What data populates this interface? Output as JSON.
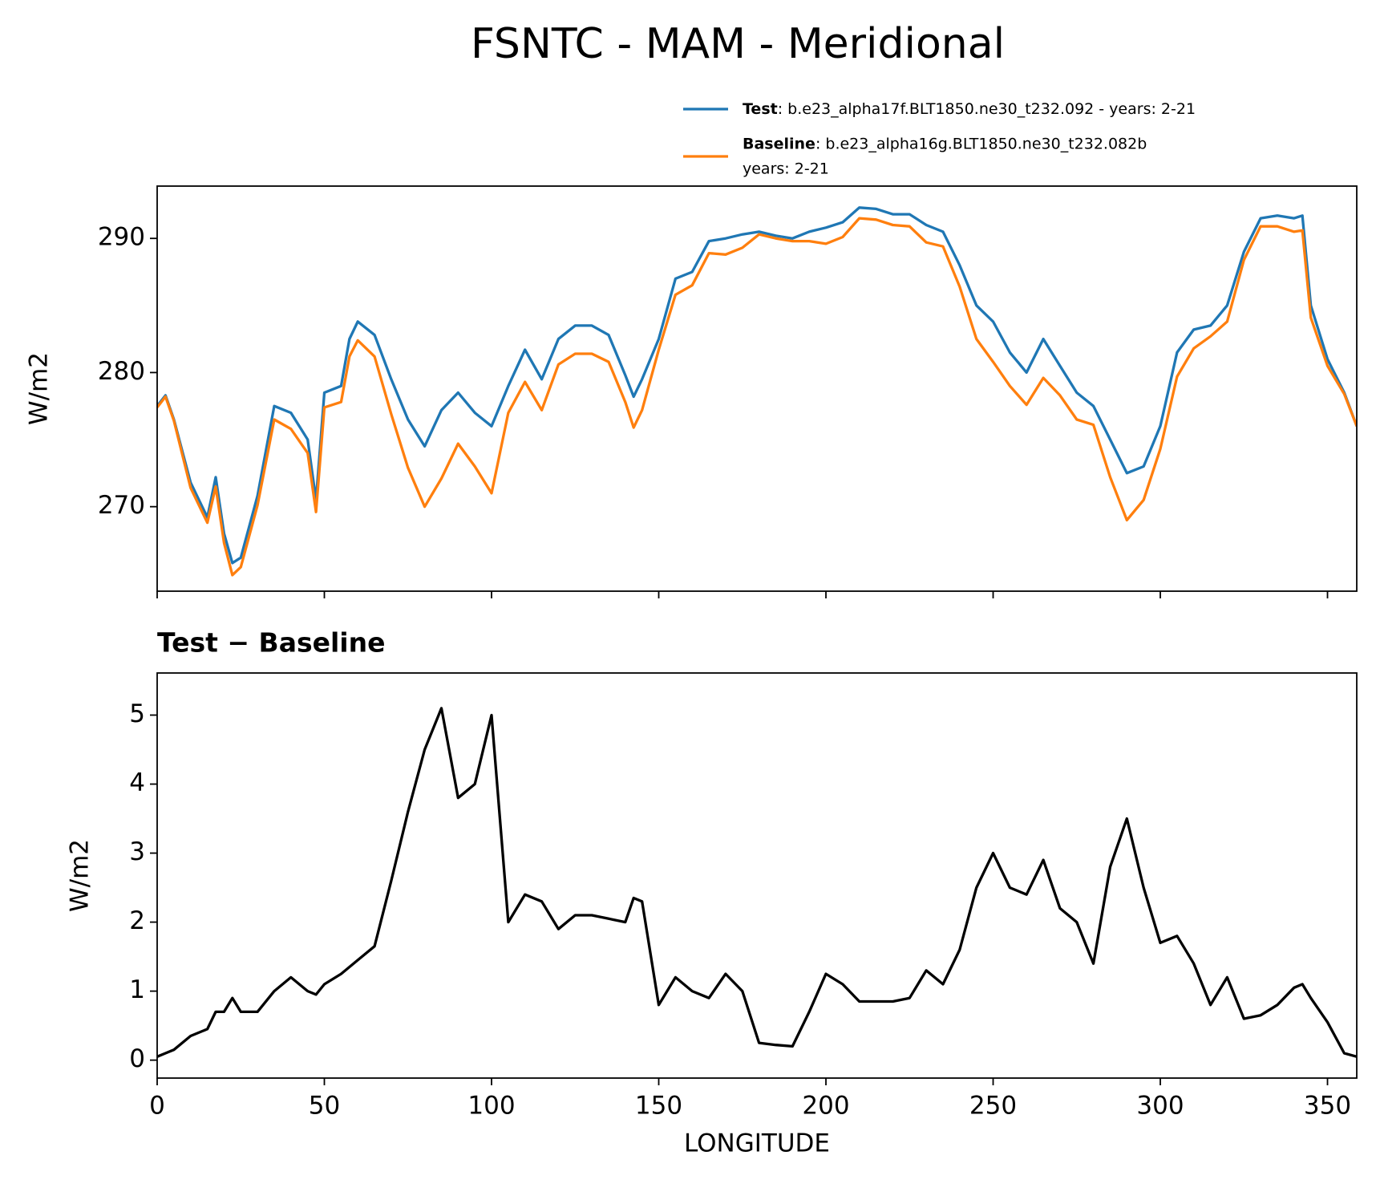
{
  "chart_data": [
    {
      "type": "line",
      "title": "FSNTC - MAM - Meridional",
      "ylabel": "W/m2",
      "x": [
        0,
        2.5,
        5,
        10,
        15,
        17.5,
        20,
        22.5,
        25,
        30,
        35,
        40,
        45,
        47.5,
        50,
        55,
        57.5,
        60,
        65,
        70,
        75,
        80,
        85,
        90,
        95,
        100,
        105,
        110,
        115,
        120,
        125,
        130,
        135,
        140,
        142.5,
        145,
        150,
        155,
        160,
        165,
        170,
        175,
        180,
        185,
        190,
        195,
        200,
        205,
        210,
        215,
        220,
        225,
        230,
        235,
        240,
        245,
        250,
        255,
        260,
        265,
        270,
        275,
        280,
        285,
        290,
        295,
        300,
        305,
        310,
        315,
        320,
        325,
        330,
        335,
        340,
        342.5,
        345,
        350,
        355,
        358.75
      ],
      "series": [
        {
          "name": "Test",
          "description": [
            ": b.e23_alpha17f.BLT1850.ne30_t232.092 - years: 2-21"
          ],
          "color": "#1f77b4",
          "values": [
            277.5,
            278.3,
            276.5,
            271.8,
            269.2,
            272.2,
            268,
            265.8,
            266.2,
            270.8,
            277.5,
            277,
            275,
            270.5,
            278.5,
            279,
            282.5,
            283.8,
            282.8,
            279.5,
            276.5,
            274.5,
            277.2,
            278.5,
            277,
            276,
            279,
            281.7,
            279.5,
            282.5,
            283.5,
            283.5,
            282.8,
            279.8,
            278.2,
            279.5,
            282.5,
            287,
            287.5,
            289.8,
            290,
            290.3,
            290.5,
            290.2,
            290,
            290.5,
            290.8,
            291.2,
            292.3,
            292.2,
            291.8,
            291.8,
            291,
            290.5,
            288,
            285,
            283.8,
            281.5,
            280,
            282.5,
            280.5,
            278.5,
            277.5,
            275,
            272.5,
            273,
            276,
            281.5,
            283.2,
            283.5,
            285,
            289,
            291.5,
            291.7,
            291.5,
            291.7,
            285,
            281,
            278.5,
            276
          ]
        },
        {
          "name": "Baseline",
          "description": [
            ": b.e23_alpha16g.BLT1850.ne30_t232.082b",
            "years: 2-21"
          ],
          "color": "#ff7f0e",
          "values": [
            277.4,
            278.2,
            276.4,
            271.4,
            268.8,
            271.5,
            267.3,
            264.9,
            265.5,
            270.1,
            276.5,
            275.8,
            274,
            269.6,
            277.4,
            277.8,
            281.2,
            282.4,
            281.2,
            276.9,
            272.9,
            270,
            272.1,
            274.7,
            273,
            271,
            277,
            279.3,
            277.2,
            280.6,
            281.4,
            281.4,
            280.8,
            277.8,
            275.9,
            277.2,
            281.7,
            285.8,
            286.5,
            288.9,
            288.8,
            289.3,
            290.3,
            290,
            289.8,
            289.8,
            289.6,
            290.1,
            291.5,
            291.4,
            291,
            290.9,
            289.7,
            289.4,
            286.4,
            282.5,
            280.8,
            279,
            277.6,
            279.6,
            278.3,
            276.5,
            276.1,
            272.2,
            269,
            270.5,
            274.3,
            279.7,
            281.8,
            282.7,
            283.8,
            288.4,
            290.9,
            290.9,
            290.5,
            290.6,
            284.1,
            280.5,
            278.4,
            276
          ]
        }
      ],
      "xlim": [
        0,
        358.75
      ],
      "xticks": [
        0,
        50,
        100,
        150,
        200,
        250,
        300,
        350
      ],
      "show_xtick_labels": false,
      "ylim": [
        263.7,
        293.9
      ],
      "yticks": [
        270,
        280,
        290
      ],
      "legend": "upper right"
    },
    {
      "type": "line",
      "title": "Test − Baseline",
      "ylabel": "W/m2",
      "xlabel": "LONGITUDE",
      "color": "#000000",
      "x": [
        0,
        2.5,
        5,
        10,
        15,
        17.5,
        20,
        22.5,
        25,
        30,
        35,
        40,
        45,
        47.5,
        50,
        55,
        57.5,
        60,
        65,
        70,
        75,
        80,
        85,
        90,
        95,
        100,
        105,
        110,
        115,
        120,
        125,
        130,
        135,
        140,
        142.5,
        145,
        150,
        155,
        160,
        165,
        170,
        175,
        180,
        185,
        190,
        195,
        200,
        205,
        210,
        215,
        220,
        225,
        230,
        235,
        240,
        245,
        250,
        255,
        260,
        265,
        270,
        275,
        280,
        285,
        290,
        295,
        300,
        305,
        310,
        315,
        320,
        325,
        330,
        335,
        340,
        342.5,
        345,
        350,
        355,
        358.75
      ],
      "values": [
        0.05,
        0.1,
        0.15,
        0.35,
        0.45,
        0.7,
        0.7,
        0.9,
        0.7,
        0.7,
        1.0,
        1.2,
        1.0,
        0.95,
        1.1,
        1.25,
        1.35,
        1.45,
        1.65,
        2.6,
        3.6,
        4.5,
        5.1,
        3.8,
        4.0,
        5.0,
        2.0,
        2.4,
        2.3,
        1.9,
        2.1,
        2.1,
        2.05,
        2.0,
        2.35,
        2.3,
        0.8,
        1.2,
        1.0,
        0.9,
        1.25,
        1.0,
        0.25,
        0.22,
        0.2,
        0.7,
        1.25,
        1.1,
        0.85,
        0.85,
        0.85,
        0.9,
        1.3,
        1.1,
        1.6,
        2.5,
        3.0,
        2.5,
        2.4,
        2.9,
        2.2,
        2.0,
        1.4,
        2.8,
        3.5,
        2.5,
        1.7,
        1.8,
        1.4,
        0.8,
        1.2,
        0.6,
        0.65,
        0.8,
        1.05,
        1.1,
        0.9,
        0.55,
        0.1,
        0.05
      ],
      "xlim": [
        0,
        358.75
      ],
      "xticks": [
        0,
        50,
        100,
        150,
        200,
        250,
        300,
        350
      ],
      "show_xtick_labels": true,
      "ylim": [
        -0.26,
        5.61
      ],
      "yticks": [
        0,
        1,
        2,
        3,
        4,
        5
      ]
    }
  ]
}
